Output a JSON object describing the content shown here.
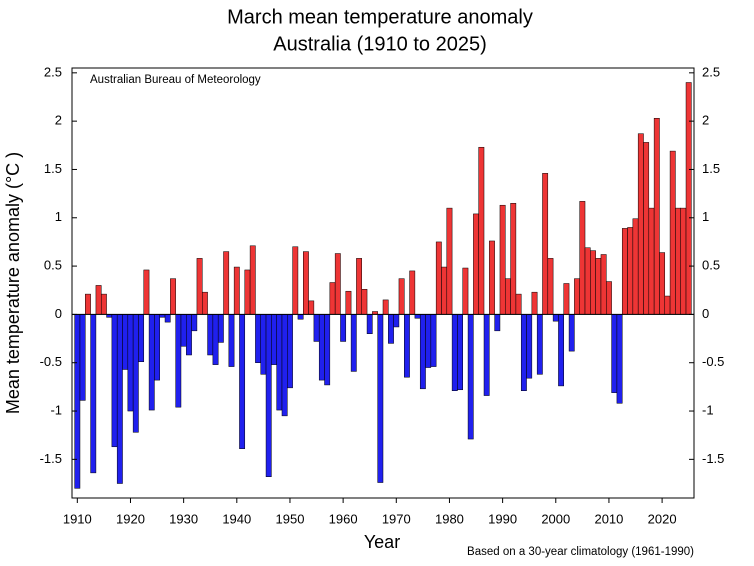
{
  "chart_data": {
    "type": "bar",
    "title": "March mean temperature anomaly",
    "subtitle": "Australia (1910 to 2025)",
    "x_label": "Year",
    "y_label": "Mean temperature anomaly (°C )",
    "annotation": "Australian Bureau of Meteorology",
    "footnote": "Based on a 30-year climatology (1961-1990)",
    "positive_color": "#ee3535",
    "negative_color": "#2020ee",
    "x": [
      1910,
      1911,
      1912,
      1913,
      1914,
      1915,
      1916,
      1917,
      1918,
      1919,
      1920,
      1921,
      1922,
      1923,
      1924,
      1925,
      1926,
      1927,
      1928,
      1929,
      1930,
      1931,
      1932,
      1933,
      1934,
      1935,
      1936,
      1937,
      1938,
      1939,
      1940,
      1941,
      1942,
      1943,
      1944,
      1945,
      1946,
      1947,
      1948,
      1949,
      1950,
      1951,
      1952,
      1953,
      1954,
      1955,
      1956,
      1957,
      1958,
      1959,
      1960,
      1961,
      1962,
      1963,
      1964,
      1965,
      1966,
      1967,
      1968,
      1969,
      1970,
      1971,
      1972,
      1973,
      1974,
      1975,
      1976,
      1977,
      1978,
      1979,
      1980,
      1981,
      1982,
      1983,
      1984,
      1985,
      1986,
      1987,
      1988,
      1989,
      1990,
      1991,
      1992,
      1993,
      1994,
      1995,
      1996,
      1997,
      1998,
      1999,
      2000,
      2001,
      2002,
      2003,
      2004,
      2005,
      2006,
      2007,
      2008,
      2009,
      2010,
      2011,
      2012,
      2013,
      2014,
      2015,
      2016,
      2017,
      2018,
      2019,
      2020,
      2021,
      2022,
      2023,
      2024,
      2025
    ],
    "values": [
      -1.8,
      -0.89,
      0.21,
      -1.64,
      0.3,
      0.21,
      -0.03,
      -1.37,
      -1.75,
      -0.57,
      -1.0,
      -1.22,
      -0.49,
      0.46,
      -0.99,
      -0.68,
      -0.03,
      -0.08,
      0.37,
      -0.96,
      -0.33,
      -0.42,
      -0.17,
      0.58,
      0.23,
      -0.42,
      -0.52,
      -0.29,
      0.65,
      -0.54,
      0.49,
      -1.39,
      0.46,
      0.71,
      -0.5,
      -0.62,
      -1.68,
      -0.52,
      -0.99,
      -1.05,
      -0.76,
      0.7,
      -0.05,
      0.65,
      0.14,
      -0.28,
      -0.68,
      -0.73,
      0.33,
      0.63,
      -0.28,
      0.24,
      -0.59,
      0.58,
      0.26,
      -0.2,
      0.03,
      -1.74,
      0.15,
      -0.3,
      -0.13,
      0.37,
      -0.65,
      0.45,
      -0.04,
      -0.77,
      -0.55,
      -0.54,
      0.75,
      0.49,
      1.1,
      -0.79,
      -0.78,
      0.48,
      -1.29,
      1.04,
      1.73,
      -0.84,
      0.76,
      -0.17,
      1.13,
      0.37,
      1.15,
      0.21,
      -0.79,
      -0.66,
      0.23,
      -0.62,
      1.46,
      0.58,
      -0.07,
      -0.74,
      0.32,
      -0.38,
      0.37,
      1.17,
      0.69,
      0.66,
      0.58,
      0.62,
      0.34,
      -0.81,
      -0.92,
      0.89,
      0.9,
      0.99,
      1.87,
      1.78,
      1.1,
      2.03,
      0.64,
      0.19,
      1.69,
      1.1,
      1.1,
      2.4
    ],
    "xlim": [
      1909,
      2026
    ],
    "xticks": [
      1910,
      1920,
      1930,
      1940,
      1950,
      1960,
      1970,
      1980,
      1990,
      2000,
      2010,
      2020
    ],
    "ylim": [
      -1.9,
      2.55
    ],
    "yticks": [
      -1.5,
      -1,
      -0.5,
      0,
      0.5,
      1,
      1.5,
      2,
      2.5
    ]
  }
}
